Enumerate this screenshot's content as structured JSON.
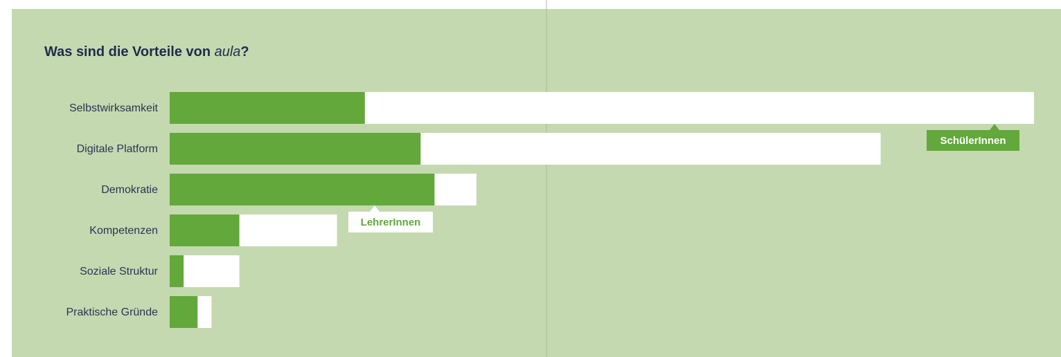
{
  "chart_data": {
    "type": "bar",
    "orientation": "horizontal",
    "title_parts": [
      "Was sind die Vorteile von ",
      "aula",
      "?"
    ],
    "categories": [
      "Selbstwirksamkeit",
      "Digitale Platform",
      "Demokratie",
      "Kompetenzen",
      "Soziale Struktur",
      "Praktische Gründe"
    ],
    "series": [
      {
        "name": "SchülerInnen",
        "color": "#ffffff",
        "values": [
          62,
          51,
          22,
          12,
          5,
          3
        ]
      },
      {
        "name": "LehrerInnen",
        "color": "#62a83a",
        "values": [
          14,
          18,
          19,
          5,
          1,
          2
        ]
      }
    ]
  }
}
